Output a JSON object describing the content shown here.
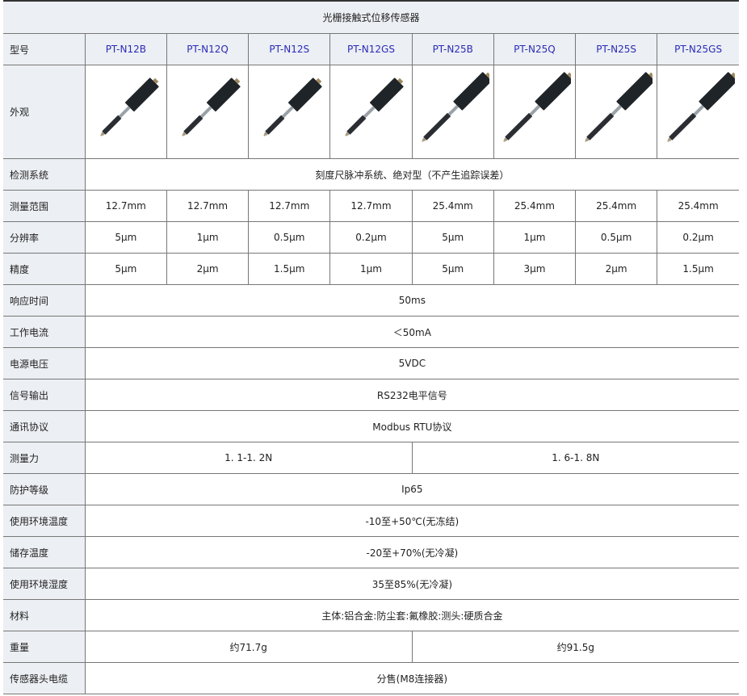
{
  "title": "光栅接触式位移传感器",
  "model_label": "型号",
  "models": [
    "PT-N12B",
    "PT-N12Q",
    "PT-N12S",
    "PT-N12GS",
    "PT-N25B",
    "PT-N25Q",
    "PT-N25S",
    "PT-N25GS"
  ],
  "appearance_label": "外观",
  "rows": [
    {
      "label": "检测系统",
      "values": [
        "刻度尺脉冲系统、绝对型（不产生追踪误差）"
      ]
    },
    {
      "label": "测量范围",
      "values": [
        "12.7mm",
        "12.7mm",
        "12.7mm",
        "12.7mm",
        "25.4mm",
        "25.4mm",
        "25.4mm",
        "25.4mm"
      ]
    },
    {
      "label": "分辨率",
      "values": [
        "5μm",
        "1μm",
        "0.5μm",
        "0.2μm",
        "5μm",
        "1μm",
        "0.5μm",
        "0.2μm"
      ]
    },
    {
      "label": "精度",
      "values": [
        "5μm",
        "2μm",
        "1.5μm",
        "1μm",
        "5μm",
        "3μm",
        "2μm",
        "1.5μm"
      ]
    },
    {
      "label": "响应时间",
      "values": [
        "50ms"
      ]
    },
    {
      "label": "工作电流",
      "values": [
        "＜50mA"
      ]
    },
    {
      "label": "电源电压",
      "values": [
        "5VDC"
      ]
    },
    {
      "label": "信号输出",
      "values": [
        "RS232电平信号"
      ]
    },
    {
      "label": "通讯协议",
      "values": [
        "Modbus RTU协议"
      ]
    },
    {
      "label": "测量力",
      "values": [
        "1. 1-1. 2N",
        "1. 6-1. 8N"
      ]
    },
    {
      "label": "防护等级",
      "values": [
        "Ip65"
      ]
    },
    {
      "label": "使用环境温度",
      "values": [
        "-10至+50℃(无冻结)"
      ]
    },
    {
      "label": "储存温度",
      "values": [
        "-20至+70%(无冷凝)"
      ]
    },
    {
      "label": "使用环境湿度",
      "values": [
        "35至85%(无冷凝)"
      ]
    },
    {
      "label": "材料",
      "values": [
        "主体:铝合金:防尘套:氟橡胶:测头:硬质合金"
      ]
    },
    {
      "label": "重量",
      "values": [
        "约71.7g",
        "约91.5g"
      ]
    },
    {
      "label": "传感器头电缆",
      "values": [
        "分售(M8连接器)"
      ]
    }
  ]
}
